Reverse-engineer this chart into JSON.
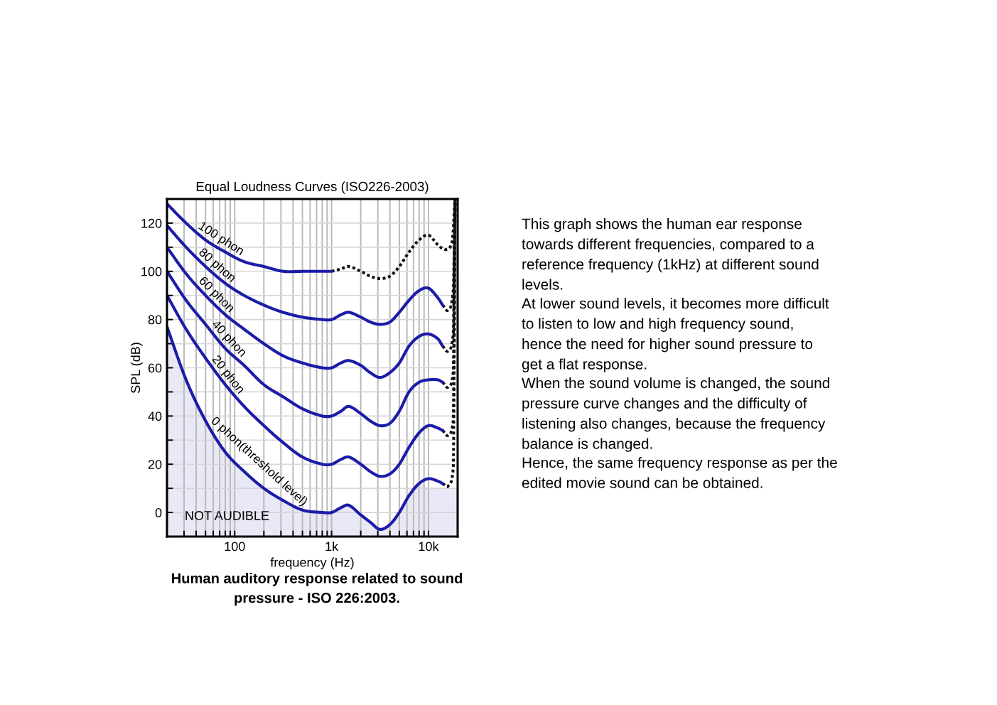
{
  "chart_data": {
    "type": "line",
    "title": "Equal Loudness Curves (ISO226-2003)",
    "xlabel": "frequency (Hz)",
    "ylabel": "SPL (dB)",
    "log": "x",
    "xlim": [
      20,
      20000
    ],
    "ylim": [
      -10,
      130
    ],
    "xticks": [
      {
        "value": 30,
        "label": null
      },
      {
        "value": 40,
        "label": null
      },
      {
        "value": 50,
        "label": null
      },
      {
        "value": 60,
        "label": null
      },
      {
        "value": 70,
        "label": null
      },
      {
        "value": 80,
        "label": null
      },
      {
        "value": 90,
        "label": null
      },
      {
        "value": 100,
        "label": "100"
      },
      {
        "value": 200,
        "label": null
      },
      {
        "value": 300,
        "label": null
      },
      {
        "value": 400,
        "label": null
      },
      {
        "value": 500,
        "label": null
      },
      {
        "value": 600,
        "label": null
      },
      {
        "value": 700,
        "label": null
      },
      {
        "value": 800,
        "label": null
      },
      {
        "value": 900,
        "label": null
      },
      {
        "value": 1000,
        "label": "1k"
      },
      {
        "value": 2000,
        "label": null
      },
      {
        "value": 3000,
        "label": null
      },
      {
        "value": 4000,
        "label": null
      },
      {
        "value": 5000,
        "label": null
      },
      {
        "value": 6000,
        "label": null
      },
      {
        "value": 7000,
        "label": null
      },
      {
        "value": 8000,
        "label": null
      },
      {
        "value": 9000,
        "label": null
      },
      {
        "value": 10000,
        "label": "10k"
      }
    ],
    "yticks": [
      0,
      {
        "value": 10,
        "label": null
      },
      20,
      {
        "value": 30,
        "label": null
      },
      40,
      {
        "value": 50,
        "label": null
      },
      60,
      {
        "value": 70,
        "label": null
      },
      80,
      {
        "value": 90,
        "label": null
      },
      100,
      {
        "value": 110,
        "label": null
      },
      120
    ],
    "grid": true,
    "line_style": "solid",
    "series": [
      {
        "name": "100 phon",
        "color": "#1c1ca8",
        "x": [
          20,
          31.5,
          50,
          80,
          125,
          200,
          315,
          500,
          800,
          1000
        ],
        "values": [
          128,
          120,
          113,
          108,
          104,
          102,
          100,
          100,
          100,
          100
        ]
      },
      {
        "color": "#111111",
        "line_style": "dotted",
        "x": [
          1000,
          1250,
          1500,
          2000,
          2500,
          3150,
          4000,
          5000,
          6300,
          8000,
          10000,
          12500,
          15000,
          17500,
          18800
        ],
        "values": [
          100,
          101,
          102,
          100,
          98,
          97,
          98,
          102,
          108,
          113,
          115,
          111,
          109,
          112,
          130
        ]
      },
      {
        "name": "80 phon",
        "color": "#1c1ca8",
        "x": [
          20,
          31.5,
          50,
          80,
          125,
          200,
          315,
          500,
          800,
          1000,
          1250,
          1500,
          2000,
          2500,
          3150,
          4000,
          5000,
          6300,
          8000,
          10000,
          12500,
          14000
        ],
        "values": [
          119,
          110,
          102,
          95,
          90,
          86,
          83,
          81,
          80,
          80,
          82,
          83,
          81,
          79,
          78,
          79,
          83,
          88,
          92,
          93,
          89,
          86
        ]
      },
      {
        "color": "#111111",
        "line_style": "dotted",
        "x": [
          14000,
          16000,
          18000,
          18800
        ],
        "values": [
          86,
          84,
          92,
          130
        ]
      },
      {
        "name": "60 phon",
        "color": "#1c1ca8",
        "x": [
          20,
          31.5,
          50,
          80,
          125,
          200,
          315,
          500,
          800,
          1000,
          1250,
          1500,
          2000,
          2500,
          3150,
          4000,
          5000,
          6300,
          8000,
          10000,
          12500,
          14000
        ],
        "values": [
          110,
          99,
          90,
          82,
          76,
          70,
          65,
          62,
          60,
          60,
          62,
          63,
          61,
          58,
          56,
          58,
          62,
          69,
          73,
          74,
          72,
          69
        ]
      },
      {
        "color": "#111111",
        "line_style": "dotted",
        "x": [
          14000,
          16000,
          18000,
          18800
        ],
        "values": [
          69,
          67,
          74,
          130
        ]
      },
      {
        "name": "40 phon",
        "color": "#1c1ca8",
        "x": [
          20,
          31.5,
          50,
          80,
          125,
          200,
          315,
          500,
          800,
          1000,
          1250,
          1500,
          2000,
          2500,
          3150,
          4000,
          5000,
          6300,
          8000,
          10000,
          12500,
          14000
        ],
        "values": [
          100,
          88,
          78,
          68,
          61,
          53,
          48,
          43,
          40,
          40,
          42,
          44,
          41,
          38,
          36,
          37,
          42,
          50,
          54,
          55,
          55,
          54
        ]
      },
      {
        "color": "#111111",
        "line_style": "dotted",
        "x": [
          14000,
          16000,
          18000,
          18800
        ],
        "values": [
          54,
          52,
          58,
          130
        ]
      },
      {
        "name": "20 phon",
        "color": "#1c1ca8",
        "x": [
          20,
          31.5,
          50,
          80,
          125,
          200,
          315,
          500,
          800,
          1000,
          1250,
          1500,
          2000,
          2500,
          3150,
          4000,
          5000,
          6300,
          8000,
          10000,
          12500,
          14000
        ],
        "values": [
          90,
          76,
          64,
          53,
          44,
          36,
          29,
          23,
          20,
          20,
          22,
          23,
          20,
          17,
          15,
          16,
          20,
          27,
          33,
          36,
          35,
          34
        ]
      },
      {
        "color": "#111111",
        "line_style": "dotted",
        "x": [
          14000,
          16000,
          18000,
          18800
        ],
        "values": [
          34,
          32,
          38,
          130
        ]
      },
      {
        "name": "0 phon(threshold level)",
        "color": "#1c1ca8",
        "x": [
          20,
          31.5,
          50,
          80,
          125,
          200,
          315,
          500,
          800,
          1000,
          1250,
          1500,
          2000,
          2500,
          3150,
          4000,
          5000,
          6300,
          8000,
          10000,
          12500,
          14000
        ],
        "values": [
          77,
          55,
          38,
          25,
          17,
          10,
          5,
          1,
          0,
          0,
          2,
          3,
          -1,
          -4,
          -7,
          -5,
          0,
          7,
          12,
          14,
          13,
          12
        ],
        "lower": [
          -10,
          -10,
          -10,
          -10,
          -10,
          -10,
          -10,
          -10,
          -10,
          -10,
          -10,
          -10,
          -10,
          -10,
          -10,
          -10,
          -10,
          -10,
          -10,
          -10,
          -10,
          -10
        ],
        "upper": [
          77,
          55,
          38,
          25,
          17,
          10,
          5,
          1,
          0,
          0,
          2,
          3,
          -1,
          -4,
          -7,
          -5,
          0,
          7,
          12,
          10,
          10,
          10
        ]
      },
      {
        "color": "#111111",
        "line_style": "dotted",
        "x": [
          14000,
          16000,
          18000,
          18800
        ],
        "values": [
          12,
          11,
          18,
          130
        ]
      }
    ],
    "annotations": [
      "NOT AUDIBLE",
      "Human auditory response related to sound\npressure - ISO 226:2003.",
      "This graph shows the human ear response\ntowards different frequencies, compared to a\nreference frequency (1kHz) at different sound\nlevels.",
      "At lower sound levels, it becomes more difficult\nto listen to low and high frequency sound,\nhence the need for higher sound pressure to\nget a flat response.",
      "When the sound volume is changed, the sound\npressure curve changes and the difficulty of\nlistening also changes, because the frequency\nbalance is changed.",
      "Hence, the same frequency response as per the\nedited movie sound can be obtained."
    ]
  }
}
